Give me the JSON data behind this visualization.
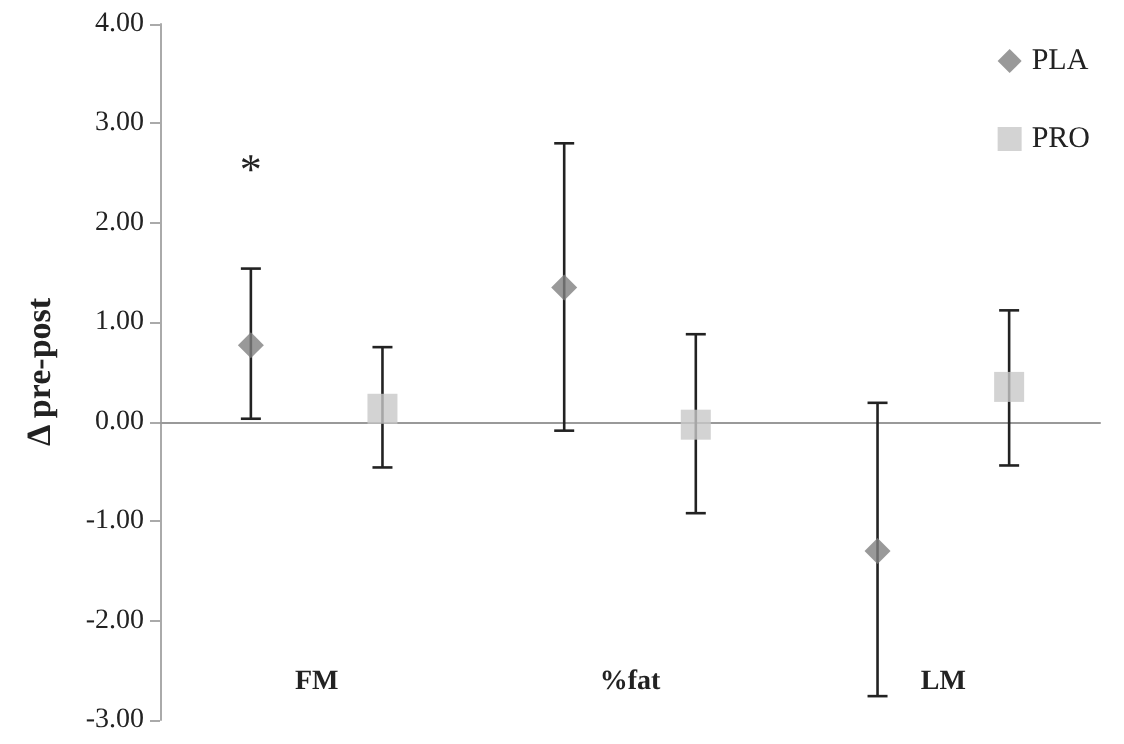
{
  "chart_data": {
    "type": "scatter",
    "ylabel": "Δ pre-post",
    "categories": [
      "FM",
      "%fat",
      "LM"
    ],
    "series": [
      {
        "name": "PLA",
        "color": "#808080",
        "marker": "diamond",
        "values": [
          0.77,
          1.35,
          -1.3
        ],
        "errors": [
          [
            0.03,
            1.54
          ],
          [
            -0.09,
            2.8
          ],
          [
            -2.76,
            0.19
          ]
        ]
      },
      {
        "name": "PRO",
        "color": "#c8c8c8",
        "marker": "square",
        "values": [
          0.13,
          -0.03,
          0.35
        ],
        "errors": [
          [
            -0.46,
            0.75
          ],
          [
            -0.92,
            0.88
          ],
          [
            -0.44,
            1.12
          ]
        ]
      }
    ],
    "ylim": [
      -3,
      4
    ],
    "yticks": [
      {
        "value": -3,
        "label": "-3.00"
      },
      {
        "value": -2,
        "label": "-2.00"
      },
      {
        "value": -1,
        "label": "-1.00"
      },
      {
        "value": 0,
        "label": "0.00"
      },
      {
        "value": 1,
        "label": "1.00"
      },
      {
        "value": 2,
        "label": "2.00"
      },
      {
        "value": 3,
        "label": "3.00"
      },
      {
        "value": 4,
        "label": "4.00"
      }
    ],
    "annotations": [
      "*"
    ],
    "legend": "top right"
  }
}
